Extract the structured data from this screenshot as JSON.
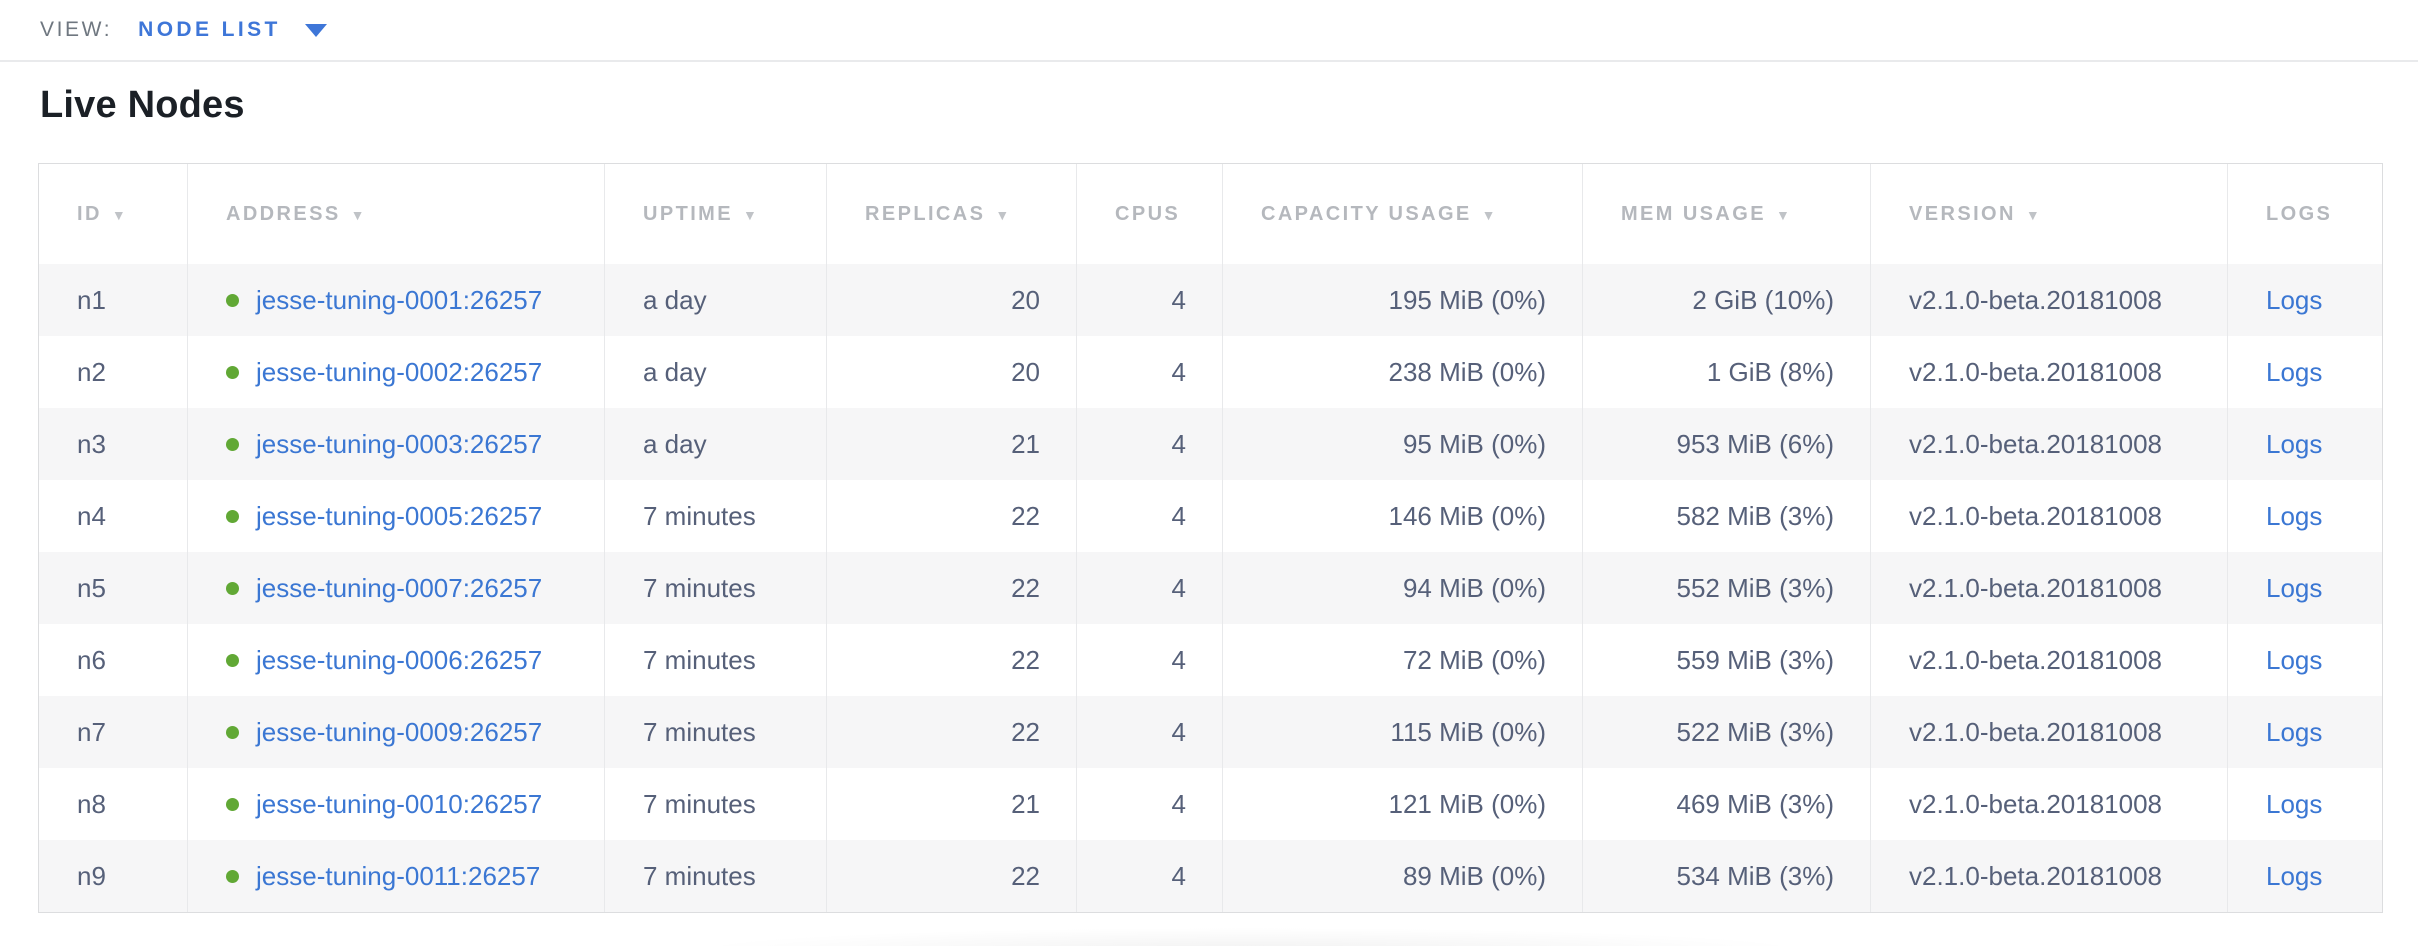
{
  "toolbar": {
    "view_label": "VIEW:",
    "view_value": "NODE LIST"
  },
  "page": {
    "title": "Live Nodes"
  },
  "table": {
    "columns": [
      {
        "key": "id",
        "label": "ID",
        "sortable": true,
        "align": "left"
      },
      {
        "key": "address",
        "label": "ADDRESS",
        "sortable": true,
        "align": "left"
      },
      {
        "key": "uptime",
        "label": "UPTIME",
        "sortable": true,
        "align": "left"
      },
      {
        "key": "replicas",
        "label": "REPLICAS",
        "sortable": true,
        "align": "right"
      },
      {
        "key": "cpus",
        "label": "CPUS",
        "sortable": false,
        "align": "right"
      },
      {
        "key": "capacity",
        "label": "CAPACITY USAGE",
        "sortable": true,
        "align": "right"
      },
      {
        "key": "mem",
        "label": "MEM USAGE",
        "sortable": true,
        "align": "right"
      },
      {
        "key": "version",
        "label": "VERSION",
        "sortable": true,
        "align": "left"
      },
      {
        "key": "logs",
        "label": "LOGS",
        "sortable": false,
        "align": "left"
      }
    ],
    "logs_label": "Logs",
    "status_legend": {
      "live": "live-status-dot"
    },
    "rows": [
      {
        "id": "n1",
        "address": "jesse-tuning-0001:26257",
        "status": "live",
        "uptime": "a day",
        "replicas": "20",
        "cpus": "4",
        "capacity": "195 MiB (0%)",
        "mem": "2 GiB (10%)",
        "version": "v2.1.0-beta.20181008"
      },
      {
        "id": "n2",
        "address": "jesse-tuning-0002:26257",
        "status": "live",
        "uptime": "a day",
        "replicas": "20",
        "cpus": "4",
        "capacity": "238 MiB (0%)",
        "mem": "1 GiB (8%)",
        "version": "v2.1.0-beta.20181008"
      },
      {
        "id": "n3",
        "address": "jesse-tuning-0003:26257",
        "status": "live",
        "uptime": "a day",
        "replicas": "21",
        "cpus": "4",
        "capacity": "95 MiB (0%)",
        "mem": "953 MiB (6%)",
        "version": "v2.1.0-beta.20181008"
      },
      {
        "id": "n4",
        "address": "jesse-tuning-0005:26257",
        "status": "live",
        "uptime": "7 minutes",
        "replicas": "22",
        "cpus": "4",
        "capacity": "146 MiB (0%)",
        "mem": "582 MiB (3%)",
        "version": "v2.1.0-beta.20181008"
      },
      {
        "id": "n5",
        "address": "jesse-tuning-0007:26257",
        "status": "live",
        "uptime": "7 minutes",
        "replicas": "22",
        "cpus": "4",
        "capacity": "94 MiB (0%)",
        "mem": "552 MiB (3%)",
        "version": "v2.1.0-beta.20181008"
      },
      {
        "id": "n6",
        "address": "jesse-tuning-0006:26257",
        "status": "live",
        "uptime": "7 minutes",
        "replicas": "22",
        "cpus": "4",
        "capacity": "72 MiB (0%)",
        "mem": "559 MiB (3%)",
        "version": "v2.1.0-beta.20181008"
      },
      {
        "id": "n7",
        "address": "jesse-tuning-0009:26257",
        "status": "live",
        "uptime": "7 minutes",
        "replicas": "22",
        "cpus": "4",
        "capacity": "115 MiB (0%)",
        "mem": "522 MiB (3%)",
        "version": "v2.1.0-beta.20181008"
      },
      {
        "id": "n8",
        "address": "jesse-tuning-0010:26257",
        "status": "live",
        "uptime": "7 minutes",
        "replicas": "21",
        "cpus": "4",
        "capacity": "121 MiB (0%)",
        "mem": "469 MiB (3%)",
        "version": "v2.1.0-beta.20181008"
      },
      {
        "id": "n9",
        "address": "jesse-tuning-0011:26257",
        "status": "live",
        "uptime": "7 minutes",
        "replicas": "22",
        "cpus": "4",
        "capacity": "89 MiB (0%)",
        "mem": "534 MiB (3%)",
        "version": "v2.1.0-beta.20181008"
      }
    ]
  },
  "icons": {
    "dropdown": "chevron-down-icon",
    "sort": "sort-desc-icon"
  },
  "colors": {
    "link": "#3b77d3",
    "view_accent": "#3e76d8",
    "live_dot": "#61a835",
    "header_text": "#b5b8bd",
    "cell_text": "#566079",
    "row_alt_bg": "#f6f6f7",
    "table_border": "#dcdddf"
  }
}
